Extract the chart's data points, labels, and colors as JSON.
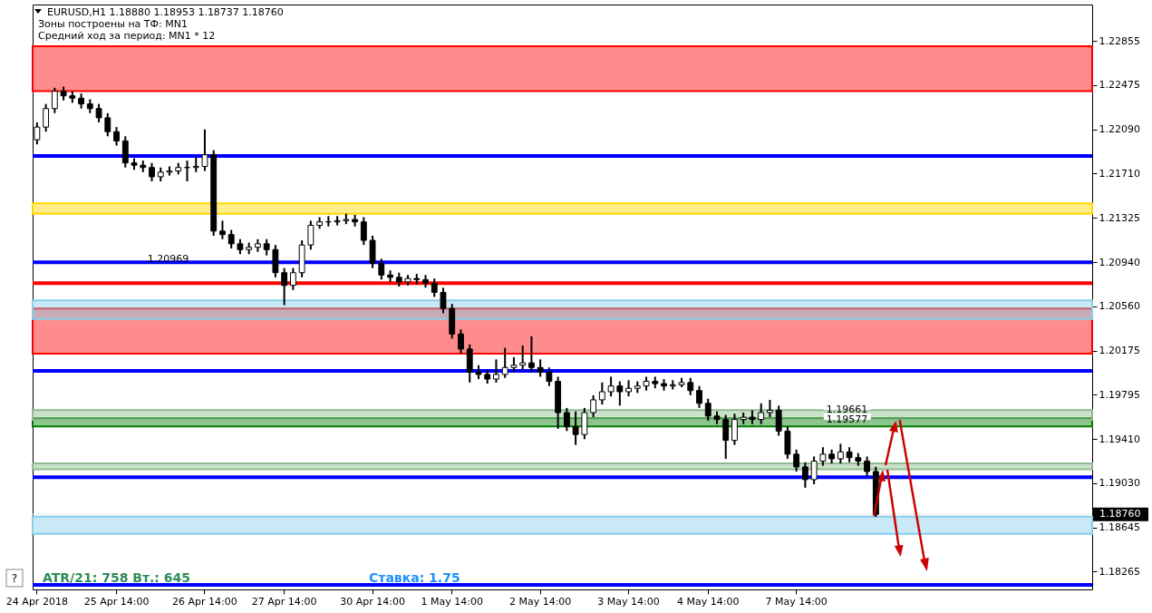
{
  "chart_data": {
    "type": "candlestick",
    "title": "EURUSD,H1  1.18880 1.18953 1.18737 1.18760",
    "subtitle": "Зоны построены на ТФ: MN1",
    "annotations": [
      "Средний ход за период: MN1 * 12",
      "ATR/21: 758  Вт.: 645",
      "Ставка: 1.75",
      "?",
      {
        "text": "1.20969",
        "y": 1.20969
      },
      {
        "text": "1.19661",
        "y": 1.19661
      },
      {
        "text": "1.19577",
        "y": 1.19577
      }
    ],
    "categories": [
      "24 Apr 2018",
      null,
      null,
      null,
      null,
      null,
      null,
      null,
      null,
      "25 Apr 14:00",
      null,
      null,
      null,
      null,
      null,
      null,
      null,
      null,
      null,
      "26 Apr 14:00",
      null,
      null,
      null,
      null,
      null,
      null,
      null,
      null,
      "27 Apr 14:00",
      null,
      null,
      null,
      null,
      null,
      null,
      null,
      null,
      null,
      "30 Apr 14:00",
      null,
      null,
      null,
      null,
      null,
      null,
      null,
      null,
      "1 May 14:00",
      null,
      null,
      null,
      null,
      null,
      null,
      null,
      null,
      null,
      "2 May 14:00",
      null,
      null,
      null,
      null,
      null,
      null,
      null,
      null,
      null,
      "3 May 14:00",
      null,
      null,
      null,
      null,
      null,
      null,
      null,
      null,
      "4 May 14:00",
      null,
      null,
      null,
      null,
      null,
      null,
      null,
      null,
      null,
      "7 May 14:00",
      null,
      null,
      null,
      null,
      null,
      null,
      null,
      null,
      null,
      null,
      null,
      null,
      null,
      null,
      null,
      null,
      null,
      null,
      null,
      null,
      null,
      null,
      null,
      null,
      null,
      null,
      null,
      null,
      null,
      null,
      null,
      null,
      null
    ],
    "ohlc": [
      [
        1.22,
        1.2215,
        1.2196,
        1.2211
      ],
      [
        1.2211,
        1.2231,
        1.2207,
        1.2227
      ],
      [
        1.2227,
        1.2245,
        1.2223,
        1.2242
      ],
      [
        1.2242,
        1.2246,
        1.2234,
        1.2238
      ],
      [
        1.2238,
        1.2242,
        1.2232,
        1.2236
      ],
      [
        1.2236,
        1.224,
        1.2227,
        1.2231
      ],
      [
        1.2231,
        1.2235,
        1.2223,
        1.2227
      ],
      [
        1.2227,
        1.2231,
        1.2215,
        1.2219
      ],
      [
        1.2219,
        1.2223,
        1.2203,
        1.2207
      ],
      [
        1.2207,
        1.2211,
        1.2195,
        1.2199
      ],
      [
        1.2199,
        1.2203,
        1.2176,
        1.218
      ],
      [
        1.218,
        1.2184,
        1.2174,
        1.2178
      ],
      [
        1.2178,
        1.2182,
        1.2172,
        1.2176
      ],
      [
        1.2176,
        1.218,
        1.2164,
        1.2168
      ],
      [
        1.2168,
        1.2176,
        1.2164,
        1.2172
      ],
      [
        1.2172,
        1.2177,
        1.2169,
        1.2173
      ],
      [
        1.2173,
        1.218,
        1.217,
        1.2176
      ],
      [
        1.2176,
        1.2182,
        1.2164,
        1.2176
      ],
      [
        1.2176,
        1.2185,
        1.2172,
        1.2177
      ],
      [
        1.2177,
        1.2209,
        1.2173,
        1.2187
      ],
      [
        1.2187,
        1.2191,
        1.2117,
        1.2121
      ],
      [
        1.2121,
        1.213,
        1.2114,
        1.2118
      ],
      [
        1.2118,
        1.2122,
        1.2106,
        1.211
      ],
      [
        1.211,
        1.2114,
        1.2101,
        1.2105
      ],
      [
        1.2105,
        1.2111,
        1.2101,
        1.2107
      ],
      [
        1.2107,
        1.2114,
        1.2103,
        1.211
      ],
      [
        1.211,
        1.2114,
        1.21,
        1.2105
      ],
      [
        1.2105,
        1.2109,
        1.2081,
        1.2085
      ],
      [
        1.2085,
        1.2089,
        1.2057,
        1.2074
      ],
      [
        1.2074,
        1.2089,
        1.207,
        1.2085
      ],
      [
        1.2085,
        1.2113,
        1.2081,
        1.2109
      ],
      [
        1.2109,
        1.213,
        1.2105,
        1.2126
      ],
      [
        1.2126,
        1.2133,
        1.2123,
        1.2129
      ],
      [
        1.2129,
        1.2134,
        1.2125,
        1.2129
      ],
      [
        1.2129,
        1.2134,
        1.2126,
        1.213
      ],
      [
        1.213,
        1.2136,
        1.2127,
        1.2131
      ],
      [
        1.2131,
        1.2135,
        1.2125,
        1.2129
      ],
      [
        1.2129,
        1.2133,
        1.2109,
        1.2113
      ],
      [
        1.2113,
        1.2117,
        1.2089,
        1.2093
      ],
      [
        1.2093,
        1.2097,
        1.2079,
        1.2083
      ],
      [
        1.2083,
        1.2087,
        1.2077,
        1.2081
      ],
      [
        1.2081,
        1.2085,
        1.2073,
        1.2077
      ],
      [
        1.2077,
        1.2083,
        1.2074,
        1.208
      ],
      [
        1.208,
        1.2084,
        1.2075,
        1.2079
      ],
      [
        1.2079,
        1.2083,
        1.2072,
        1.2076
      ],
      [
        1.2076,
        1.208,
        1.2064,
        1.2068
      ],
      [
        1.2068,
        1.2072,
        1.205,
        1.2054
      ],
      [
        1.2054,
        1.2058,
        1.2028,
        1.2032
      ],
      [
        1.2032,
        1.2036,
        1.2015,
        1.2019
      ],
      [
        1.2019,
        1.2023,
        1.199,
        1.1999
      ],
      [
        1.1999,
        1.2005,
        1.1993,
        1.1997
      ],
      [
        1.1997,
        1.2001,
        1.1989,
        1.1993
      ],
      [
        1.1993,
        1.201,
        1.199,
        1.1997
      ],
      [
        1.1997,
        1.202,
        1.1994,
        1.2003
      ],
      [
        1.2003,
        1.2012,
        1.1999,
        1.2005
      ],
      [
        1.2005,
        1.2022,
        1.2001,
        1.2007
      ],
      [
        1.2007,
        1.203,
        1.1999,
        1.2003
      ],
      [
        1.2003,
        1.201,
        1.1995,
        1.1999
      ],
      [
        1.1999,
        1.2003,
        1.1987,
        1.1991
      ],
      [
        1.1991,
        1.1995,
        1.195,
        1.1964
      ],
      [
        1.1964,
        1.1968,
        1.1948,
        1.1952
      ],
      [
        1.1952,
        1.1965,
        1.1936,
        1.1945
      ],
      [
        1.1945,
        1.1968,
        1.1941,
        1.1964
      ],
      [
        1.1964,
        1.1979,
        1.196,
        1.1975
      ],
      [
        1.1975,
        1.199,
        1.1971,
        1.1982
      ],
      [
        1.1982,
        1.1995,
        1.1978,
        1.1987
      ],
      [
        1.1987,
        1.1991,
        1.197,
        1.1982
      ],
      [
        1.1982,
        1.1992,
        1.1978,
        1.1985
      ],
      [
        1.1985,
        1.1991,
        1.1981,
        1.1987
      ],
      [
        1.1987,
        1.1995,
        1.1983,
        1.1991
      ],
      [
        1.1991,
        1.1995,
        1.1985,
        1.1989
      ],
      [
        1.1989,
        1.1993,
        1.1983,
        1.1987
      ],
      [
        1.1987,
        1.1992,
        1.1984,
        1.1988
      ],
      [
        1.1988,
        1.1994,
        1.1986,
        1.199
      ],
      [
        1.199,
        1.1994,
        1.1979,
        1.1983
      ],
      [
        1.1983,
        1.1987,
        1.1968,
        1.1972
      ],
      [
        1.1972,
        1.1976,
        1.1957,
        1.1961
      ],
      [
        1.1961,
        1.1965,
        1.1954,
        1.1958
      ],
      [
        1.1958,
        1.1962,
        1.1924,
        1.194
      ],
      [
        1.194,
        1.1963,
        1.1936,
        1.1958
      ],
      [
        1.1958,
        1.1964,
        1.1954,
        1.196
      ],
      [
        1.196,
        1.1966,
        1.1954,
        1.1958
      ],
      [
        1.1958,
        1.1972,
        1.1954,
        1.1964
      ],
      [
        1.1964,
        1.1975,
        1.196,
        1.1966
      ],
      [
        1.1966,
        1.197,
        1.1944,
        1.1948
      ],
      [
        1.1948,
        1.1952,
        1.1924,
        1.1928
      ],
      [
        1.1928,
        1.1932,
        1.1913,
        1.1917
      ],
      [
        1.1917,
        1.1921,
        1.1899,
        1.1906
      ],
      [
        1.1906,
        1.1926,
        1.1902,
        1.1922
      ],
      [
        1.1922,
        1.1934,
        1.1918,
        1.1928
      ],
      [
        1.1928,
        1.1932,
        1.192,
        1.1924
      ],
      [
        1.1924,
        1.1937,
        1.192,
        1.193
      ],
      [
        1.193,
        1.1934,
        1.1921,
        1.1925
      ],
      [
        1.1925,
        1.1929,
        1.1918,
        1.1922
      ],
      [
        1.1922,
        1.1926,
        1.1909,
        1.1913
      ],
      [
        1.1913,
        1.1917,
        1.18737,
        1.1876
      ],
      null,
      null,
      null,
      null,
      null,
      null,
      null,
      null,
      null,
      null,
      null,
      null,
      null,
      null,
      null,
      null,
      null,
      null,
      null,
      null,
      null,
      null,
      null,
      null
    ],
    "ylim": [
      1.1811,
      1.2317
    ],
    "yticks": [
      1.22855,
      1.22475,
      {
        "value": 1.2209,
        "label": "1.22090"
      },
      {
        "value": 1.2171,
        "label": "1.21710"
      },
      1.21325,
      {
        "value": 1.2094,
        "label": "1.20940"
      },
      {
        "value": 1.2056,
        "label": "1.20560"
      },
      1.20175,
      1.19795,
      {
        "value": 1.1941,
        "label": "1.19410"
      },
      {
        "value": 1.1903,
        "label": "1.19030"
      },
      1.18645,
      1.18265
    ],
    "bands": [
      {
        "axis": "y",
        "from": 1.2242,
        "to": 1.2281,
        "color": "#ff0000"
      },
      {
        "axis": "y",
        "from": 1.2015,
        "to": 1.2054,
        "color": "#ff0000"
      },
      {
        "axis": "y",
        "from": 1.2045,
        "to": 1.2061,
        "color": "#87ceeb"
      },
      {
        "axis": "y",
        "from": 1.1859,
        "to": 1.1874,
        "color": "#87ceeb"
      },
      {
        "axis": "y",
        "from": 1.2136,
        "to": 1.2145,
        "color": "#ffd700"
      },
      {
        "axis": "y",
        "from": 1.1952,
        "to": 1.1959,
        "color": "#008000"
      },
      {
        "axis": "y",
        "from": 1.19577,
        "to": 1.19661,
        "color": "#8fbc8f"
      },
      {
        "axis": "y",
        "from": 1.1915,
        "to": 1.192,
        "color": "#8fbc8f"
      }
    ],
    "ref_lines": [
      {
        "axis": "y",
        "value": 1.2186,
        "color": "#0000ff",
        "line_style": "solid"
      },
      {
        "axis": "y",
        "value": 1.2094,
        "color": "#0000ff",
        "line_style": "solid"
      },
      {
        "axis": "y",
        "value": 1.2,
        "color": "#0000ff",
        "line_style": "solid"
      },
      {
        "axis": "y",
        "value": 1.1908,
        "color": "#0000ff",
        "line_style": "solid"
      },
      {
        "axis": "y",
        "value": 1.1815,
        "color": "#0000ff",
        "line_style": "solid"
      },
      {
        "axis": "y",
        "value": 1.2076,
        "color": "#ff0000",
        "line_style": "solid"
      },
      {
        "axis": "y",
        "value": 1.1876,
        "color": "#c0c0c0",
        "line_style": "dotted",
        "label": "1.18760"
      }
    ]
  }
}
